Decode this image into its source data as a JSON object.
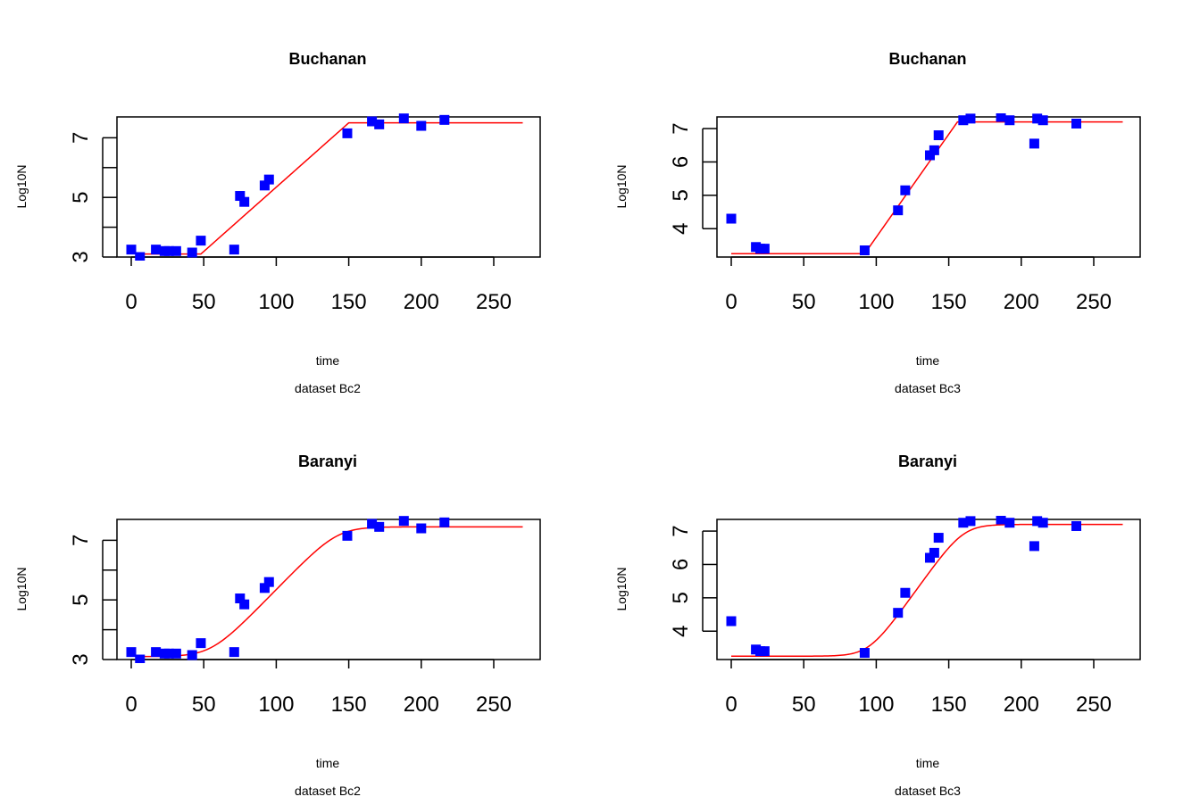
{
  "chart_data": [
    {
      "type": "scatter",
      "title": "Buchanan",
      "xlabel": "time",
      "ylabel": "Log10N",
      "subtitle": "dataset Bc2",
      "xlim": [
        0,
        270
      ],
      "ylim": [
        3,
        7.7
      ],
      "x_ticks": [
        0,
        50,
        100,
        150,
        200,
        250
      ],
      "y_ticks": [
        3,
        4,
        5,
        6,
        7
      ],
      "y_tick_labels": [
        "3",
        "",
        "5",
        "",
        "7"
      ],
      "point_color": "#0000ff",
      "curve_color": "#ff0000",
      "points": {
        "x": [
          0,
          6,
          17,
          23,
          26,
          31,
          42,
          48,
          71,
          75,
          78,
          92,
          95,
          149,
          166,
          171,
          188,
          200,
          216
        ],
        "y": [
          3.25,
          3.0,
          3.25,
          3.2,
          3.2,
          3.2,
          3.15,
          3.55,
          3.25,
          5.05,
          4.85,
          5.4,
          5.6,
          7.15,
          7.55,
          7.45,
          7.65,
          7.4,
          7.6
        ]
      },
      "curve": {
        "model": "Buchanan",
        "n0": 3.1,
        "nmax": 7.5,
        "lag": 48,
        "tmax": 150,
        "x_start": 5,
        "x_end": 270
      }
    },
    {
      "type": "scatter",
      "title": "Buchanan",
      "xlabel": "time",
      "ylabel": "Log10N",
      "subtitle": "dataset Bc3",
      "xlim": [
        0,
        270
      ],
      "ylim": [
        3.15,
        7.35
      ],
      "x_ticks": [
        0,
        50,
        100,
        150,
        200,
        250
      ],
      "y_ticks": [
        4,
        5,
        6,
        7
      ],
      "y_tick_labels": [
        "4",
        "5",
        "6",
        "7"
      ],
      "point_color": "#0000ff",
      "curve_color": "#ff0000",
      "points": {
        "x": [
          0,
          17,
          20,
          23,
          92,
          115,
          120,
          137,
          140,
          143,
          160,
          165,
          186,
          192,
          209,
          211,
          215,
          238
        ],
        "y": [
          4.3,
          3.45,
          3.4,
          3.4,
          3.35,
          4.55,
          5.15,
          6.2,
          6.35,
          6.8,
          7.25,
          7.3,
          7.35,
          7.25,
          6.55,
          7.3,
          7.25,
          7.15
        ]
      },
      "curve": {
        "model": "Buchanan",
        "n0": 3.25,
        "nmax": 7.2,
        "lag": 92,
        "tmax": 156,
        "x_start": 0,
        "x_end": 270
      }
    },
    {
      "type": "scatter",
      "title": "Baranyi",
      "xlabel": "time",
      "ylabel": "Log10N",
      "subtitle": "dataset Bc2",
      "xlim": [
        0,
        270
      ],
      "ylim": [
        3,
        7.7
      ],
      "x_ticks": [
        0,
        50,
        100,
        150,
        200,
        250
      ],
      "y_ticks": [
        3,
        4,
        5,
        6,
        7
      ],
      "y_tick_labels": [
        "3",
        "",
        "5",
        "",
        "7"
      ],
      "point_color": "#0000ff",
      "curve_color": "#ff0000",
      "points": {
        "x": [
          0,
          6,
          17,
          23,
          26,
          31,
          42,
          48,
          71,
          75,
          78,
          92,
          95,
          149,
          166,
          171,
          188,
          200,
          216
        ],
        "y": [
          3.25,
          3.0,
          3.25,
          3.2,
          3.2,
          3.2,
          3.15,
          3.55,
          3.25,
          5.05,
          4.85,
          5.4,
          5.6,
          7.15,
          7.55,
          7.45,
          7.65,
          7.4,
          7.6
        ]
      },
      "curve": {
        "model": "Baranyi",
        "n0": 3.1,
        "nmax": 7.45,
        "lag": 55,
        "mu": 0.115,
        "x_start": 5,
        "x_end": 270
      }
    },
    {
      "type": "scatter",
      "title": "Baranyi",
      "xlabel": "time",
      "ylabel": "Log10N",
      "subtitle": "dataset Bc3",
      "xlim": [
        0,
        270
      ],
      "ylim": [
        3.15,
        7.35
      ],
      "x_ticks": [
        0,
        50,
        100,
        150,
        200,
        250
      ],
      "y_ticks": [
        4,
        5,
        6,
        7
      ],
      "y_tick_labels": [
        "4",
        "5",
        "6",
        "7"
      ],
      "point_color": "#0000ff",
      "curve_color": "#ff0000",
      "points": {
        "x": [
          0,
          17,
          20,
          23,
          92,
          115,
          120,
          137,
          140,
          143,
          160,
          165,
          186,
          192,
          209,
          211,
          215,
          238
        ],
        "y": [
          4.3,
          3.45,
          3.4,
          3.4,
          3.35,
          4.55,
          5.15,
          6.2,
          6.35,
          6.8,
          7.25,
          7.3,
          7.35,
          7.25,
          6.55,
          7.3,
          7.25,
          7.15
        ]
      },
      "curve": {
        "model": "Baranyi",
        "n0": 3.25,
        "nmax": 7.2,
        "lag": 95,
        "mu": 0.14,
        "x_start": 0,
        "x_end": 270
      }
    }
  ]
}
